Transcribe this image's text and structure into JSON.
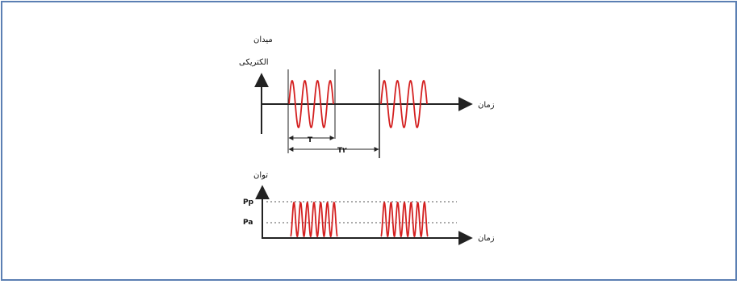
{
  "top_plot": {
    "y_label_line1": "میدان",
    "y_label_line2": "الکتریکی",
    "x_label": "زمان",
    "t_label": "T",
    "t2_label": "T۲"
  },
  "bottom_plot": {
    "y_label": "توان",
    "level_high": "Pp",
    "level_low": "Pa",
    "x_label": "زمان"
  },
  "colors": {
    "wave": "#d42020",
    "axis": "#222222",
    "border": "#5b7fb3"
  }
}
